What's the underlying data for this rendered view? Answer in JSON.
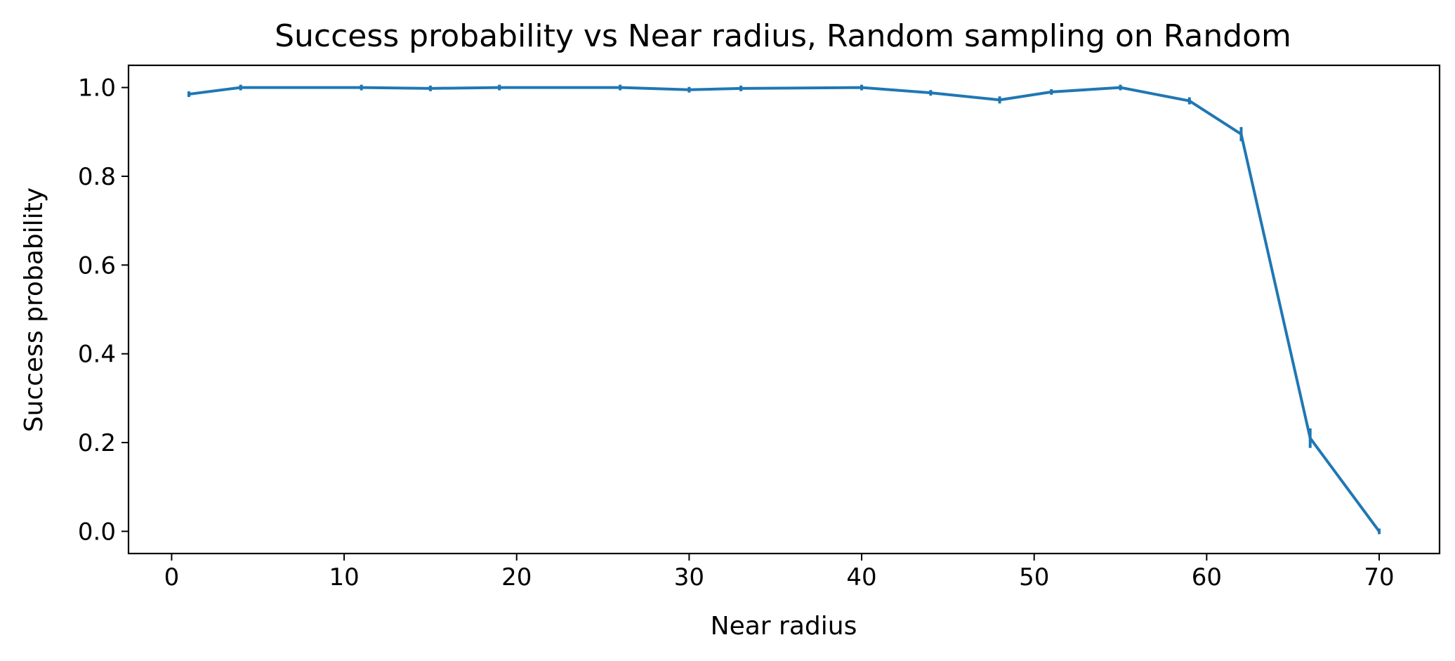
{
  "chart_data": {
    "type": "line",
    "title": "Success probability vs Near radius, Random sampling on Random",
    "xlabel": "Near radius",
    "ylabel": "Success probability",
    "xlim": [
      -2.5,
      73.5
    ],
    "ylim": [
      -0.05,
      1.05
    ],
    "xticks": [
      0,
      10,
      20,
      30,
      40,
      50,
      60,
      70
    ],
    "yticks": [
      0.0,
      0.2,
      0.4,
      0.6,
      0.8,
      1.0
    ],
    "xtick_labels": [
      "0",
      "10",
      "20",
      "30",
      "40",
      "50",
      "60",
      "70"
    ],
    "ytick_labels": [
      "0.0",
      "0.2",
      "0.4",
      "0.6",
      "0.8",
      "1.0"
    ],
    "grid": false,
    "series": [
      {
        "color": "#1f77b4",
        "x": [
          1,
          4,
          11,
          15,
          19,
          26,
          30,
          33,
          40,
          44,
          48,
          51,
          55,
          59,
          62,
          66,
          70
        ],
        "y": [
          0.985,
          1.0,
          1.0,
          0.998,
          1.0,
          1.0,
          0.995,
          0.998,
          1.0,
          0.988,
          0.972,
          0.99,
          1.0,
          0.97,
          0.895,
          0.21,
          0.0
        ],
        "yerr": [
          0.006,
          0.0,
          0.0,
          0.002,
          0.0,
          0.0,
          0.003,
          0.002,
          0.0,
          0.004,
          0.008,
          0.004,
          0.0,
          0.008,
          0.016,
          0.022,
          0.0
        ]
      }
    ]
  }
}
